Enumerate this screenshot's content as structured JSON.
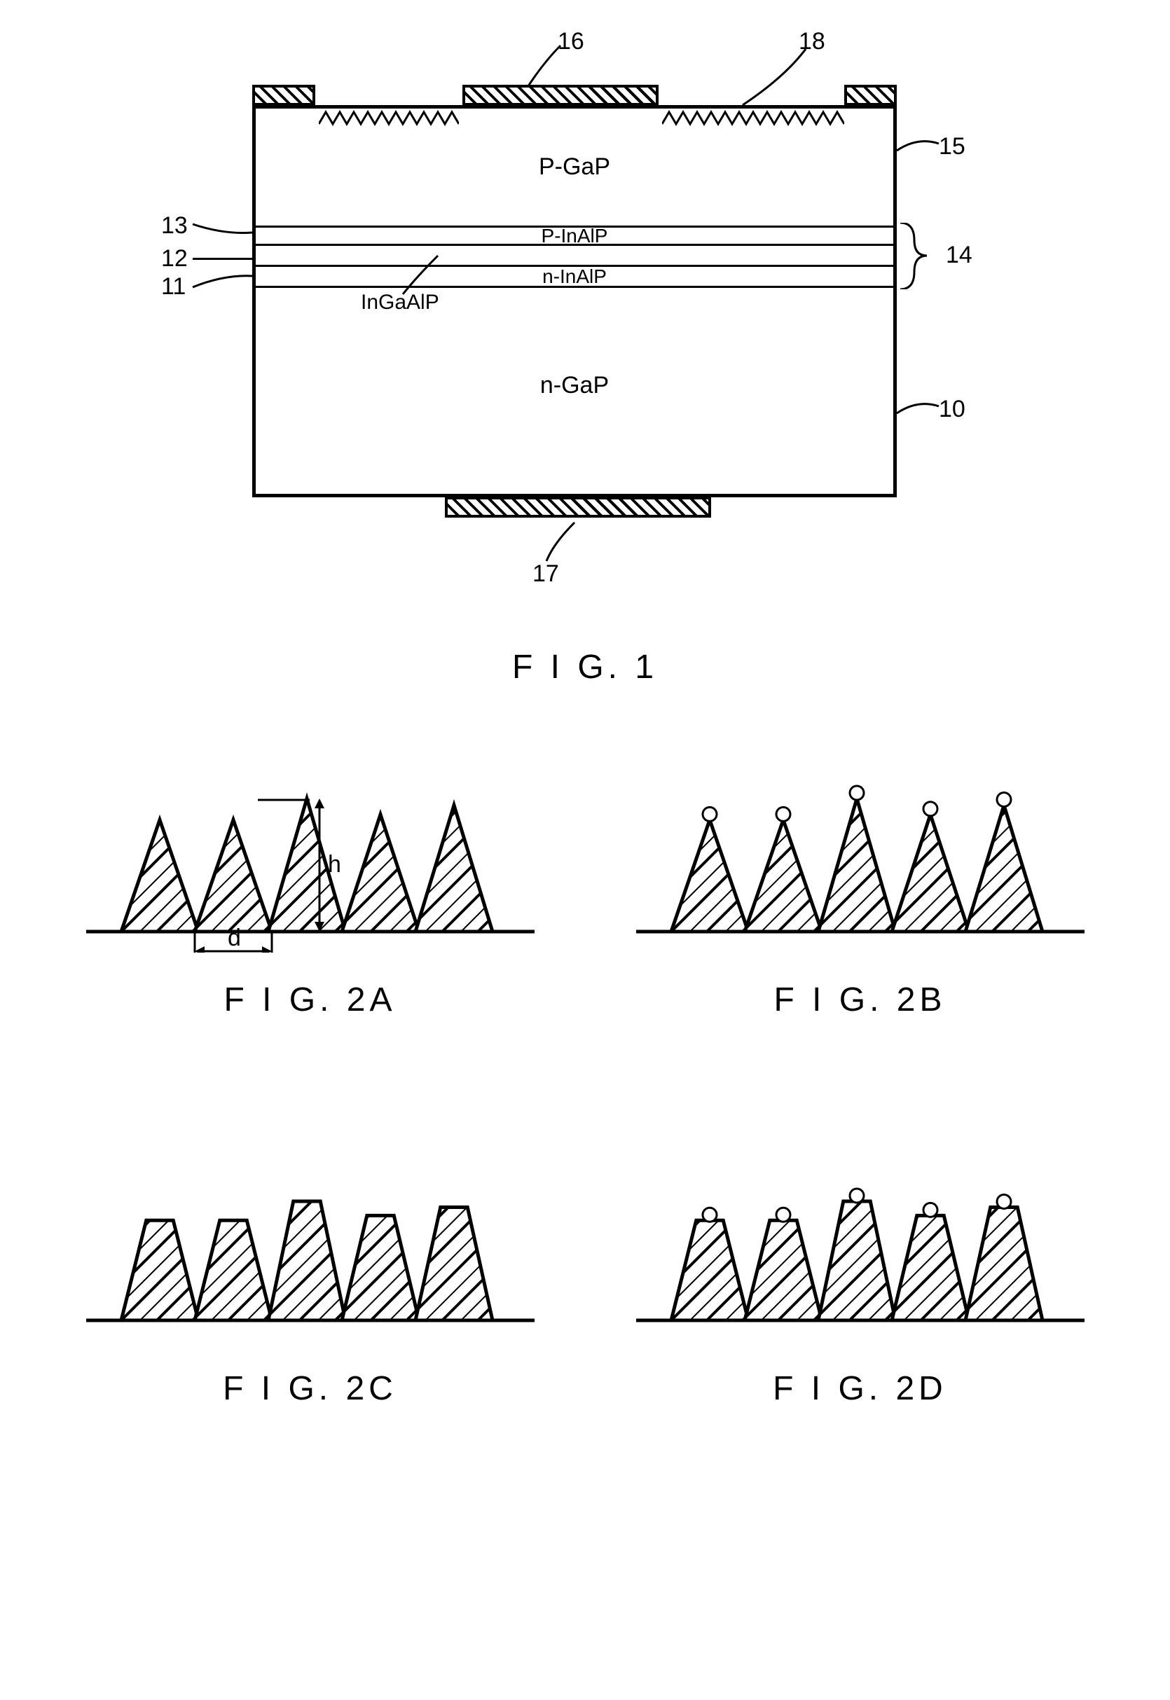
{
  "fig1": {
    "caption": "F I G. 1",
    "layers": {
      "top": "P-GaP",
      "p_inalp": "P-InAlP",
      "ingaalp": "InGaAlP",
      "n_inalp": "n-InAlP",
      "bottom": "n-GaP"
    },
    "refs": {
      "r10": "10",
      "r11": "11",
      "r12": "12",
      "r13": "13",
      "r14": "14",
      "r15": "15",
      "r16": "16",
      "r17": "17",
      "r18": "18"
    },
    "colors": {
      "stroke": "#000000",
      "bg": "#ffffff"
    }
  },
  "fig2": {
    "a": {
      "caption": "F I G. 2A",
      "d_label": "d",
      "h_label": "h"
    },
    "b": {
      "caption": "F I G. 2B"
    },
    "c": {
      "caption": "F I G. 2C"
    },
    "d": {
      "caption": "F I G. 2D"
    },
    "cone": {
      "count": 5,
      "base_width": 110,
      "height_peak": 190,
      "height_trap": 170,
      "spacing": 105,
      "hatch_spacing": 18,
      "stroke_width": 5,
      "stroke": "#000000",
      "fill": "#ffffff",
      "heights_variation": [
        0.84,
        0.84,
        1.0,
        0.88,
        0.95
      ]
    }
  }
}
